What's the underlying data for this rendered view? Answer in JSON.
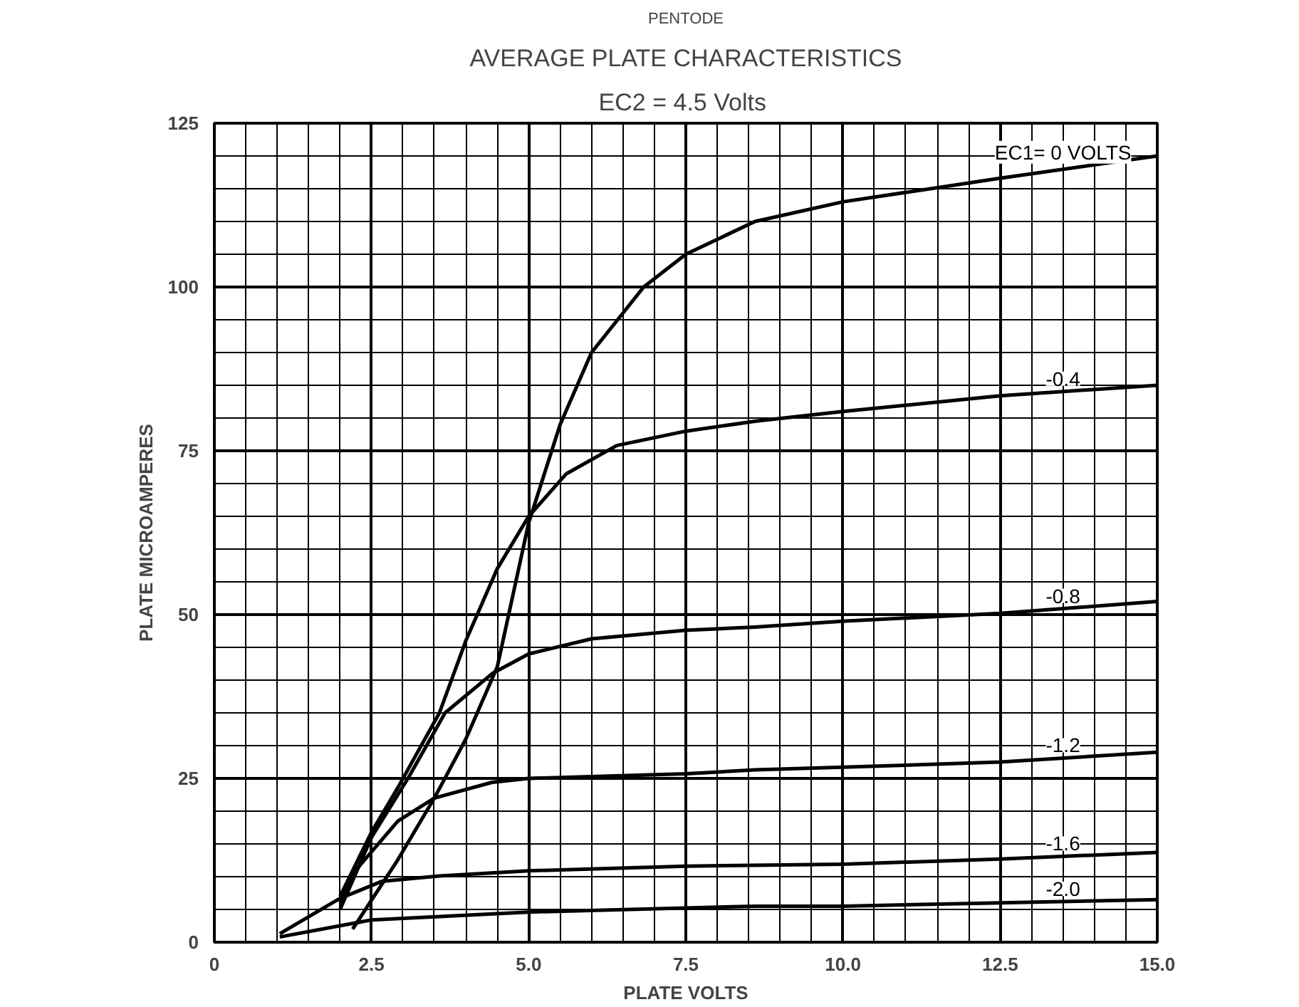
{
  "chart_data": {
    "type": "line",
    "subtitle": "PENTODE",
    "title": "AVERAGE PLATE CHARACTERISTICS",
    "annotations": [
      "EC2 =  4.5 Volts"
    ],
    "xlabel": "PLATE VOLTS",
    "ylabel": "PLATE MICROAMPERES",
    "xlim": [
      0,
      15
    ],
    "ylim": [
      0,
      125
    ],
    "xticks": [
      0,
      2.5,
      {
        "value": 5,
        "label": "5.0"
      },
      7.5,
      {
        "value": 10,
        "label": "10.0"
      },
      12.5,
      {
        "value": 15,
        "label": "15.0"
      }
    ],
    "yticks": [
      0,
      25,
      50,
      75,
      100,
      125
    ],
    "grid": true,
    "marker": "none",
    "line_style": "solid",
    "series": [
      {
        "name": "EC1= 0 VOLTS",
        "color": "#000000",
        "x": [
          2.2,
          2.92,
          3.5,
          4,
          4.5,
          5,
          5.5,
          6,
          6.83,
          7.5,
          8.6,
          10,
          12.5,
          15
        ],
        "values": [
          2,
          12.6,
          22,
          31,
          42,
          64,
          79,
          90,
          100,
          105,
          110,
          113,
          116.6,
          120
        ]
      },
      {
        "name": "-0.4",
        "color": "#000000",
        "x": [
          2.0,
          2.5,
          2.92,
          3.58,
          4,
          4.5,
          5,
          5.6,
          6.4,
          7.5,
          8.6,
          10,
          12.5,
          15
        ],
        "values": [
          7,
          16.8,
          23.6,
          35,
          46,
          57,
          65,
          71.5,
          75.8,
          78,
          79.5,
          81,
          83.4,
          85
        ]
      },
      {
        "name": "-0.8",
        "color": "#000000",
        "x": [
          2.0,
          2.5,
          3.08,
          3.67,
          4.42,
          5,
          6,
          7.5,
          8.6,
          10,
          12.5,
          15
        ],
        "values": [
          5,
          16,
          25,
          35,
          41,
          44,
          46.3,
          47.6,
          48.1,
          49,
          50.2,
          52
        ]
      },
      {
        "name": "-1.2",
        "color": "#000000",
        "x": [
          2.0,
          2.25,
          2.92,
          3.5,
          4.42,
          5,
          7.5,
          8.6,
          10,
          12.5,
          15
        ],
        "values": [
          6,
          11,
          18.5,
          22,
          24.4,
          25,
          25.7,
          26.3,
          26.7,
          27.5,
          29
        ]
      },
      {
        "name": "-1.6",
        "color": "#000000",
        "x": [
          1.04,
          2,
          2.67,
          3.58,
          5,
          7.5,
          10,
          12.5,
          15
        ],
        "values": [
          1.3,
          6.7,
          9.3,
          10.1,
          10.9,
          11.6,
          11.9,
          12.7,
          13.7
        ]
      },
      {
        "name": "-2.0",
        "color": "#000000",
        "x": [
          1.04,
          2.5,
          5,
          8.6,
          10,
          12.5,
          15
        ],
        "values": [
          0.8,
          3.4,
          4.6,
          5.5,
          5.5,
          6,
          6.5
        ]
      }
    ]
  }
}
